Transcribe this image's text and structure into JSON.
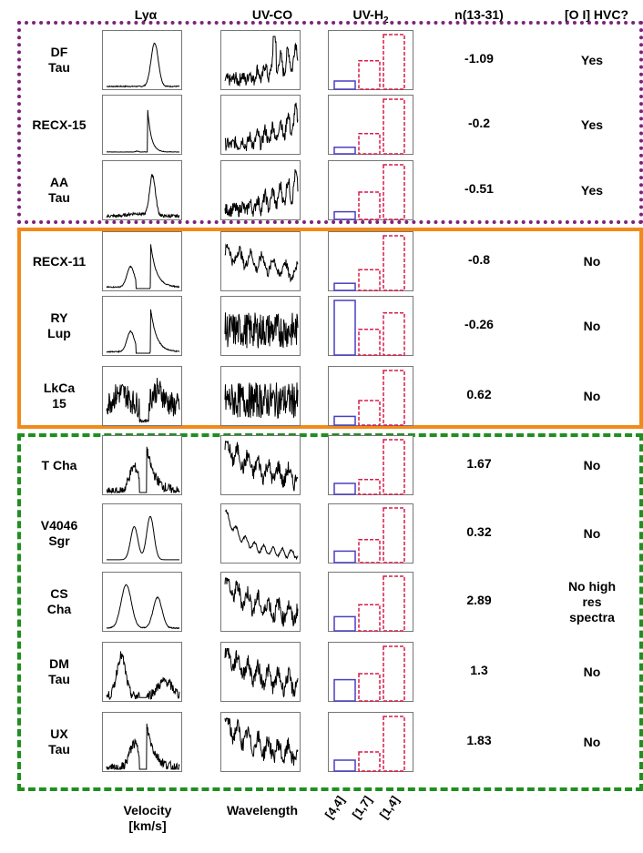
{
  "headers": {
    "lya": "Lyα",
    "uvco": "UV-CO",
    "uvh2_base": "UV-H",
    "uvh2_sub": "2",
    "n": "n(13-31)",
    "hvc": "[O I] HVC?"
  },
  "footer": {
    "velocity_line1": "Velocity",
    "velocity_line2": "[km/s]",
    "wavelength": "Wavelength",
    "bins": [
      "[4,4]",
      "[1,7]",
      "[1,4]"
    ]
  },
  "colors": {
    "group_purple": "#7b237b",
    "group_orange": "#f28a1a",
    "group_green": "#1f8f1f",
    "bar_44": "#4a3fc0",
    "bar_other": "#d81b4a"
  },
  "chart_data": {
    "type": "table",
    "columns": [
      "Lyα",
      "UV-CO",
      "UV-H2",
      "n(13-31)",
      "[O I] HVC?"
    ],
    "uvh2_bins": [
      "[4,4]",
      "[1,7]",
      "[1,4]"
    ],
    "uvh2_units": "relative height (1 = tallest bar in the row)",
    "rows": [
      {
        "name": "DF\nTau",
        "n": "-1.09",
        "hvc": "Yes",
        "group": "purple",
        "uvh2": [
          0.15,
          0.52,
          1.0
        ],
        "lya_shape": "single"
      },
      {
        "name": "RECX-15",
        "n": "-0.2",
        "hvc": "Yes",
        "group": "purple",
        "uvh2": [
          0.12,
          0.37,
          1.0
        ],
        "lya_shape": "cut-single"
      },
      {
        "name": "AA\nTau",
        "n": "-0.51",
        "hvc": "Yes",
        "group": "purple",
        "uvh2": [
          0.14,
          0.5,
          1.0
        ],
        "lya_shape": "single-noisy"
      },
      {
        "name": "RECX-11",
        "n": "-0.8",
        "hvc": "No",
        "group": "orange",
        "uvh2": [
          0.13,
          0.38,
          1.0
        ],
        "lya_shape": "double"
      },
      {
        "name": "RY\nLup",
        "n": "-0.26",
        "hvc": "No",
        "group": "orange",
        "uvh2": [
          1.0,
          0.47,
          0.77
        ],
        "lya_shape": "double"
      },
      {
        "name": "LkCa\n15",
        "n": "0.62",
        "hvc": "No",
        "group": "orange",
        "uvh2": [
          0.16,
          0.45,
          1.0
        ],
        "lya_shape": "noisy-double"
      },
      {
        "name": "T Cha",
        "n": "1.67",
        "hvc": "No",
        "group": "green",
        "uvh2": [
          0.2,
          0.27,
          1.0
        ],
        "lya_shape": "double-noisy"
      },
      {
        "name": "V4046\nSgr",
        "n": "0.32",
        "hvc": "No",
        "group": "green",
        "uvh2": [
          0.21,
          0.42,
          1.0
        ],
        "lya_shape": "double-smooth"
      },
      {
        "name": "CS\nCha",
        "n": "2.89",
        "hvc": "No high\nres\nspectra",
        "group": "green",
        "uvh2": [
          0.26,
          0.48,
          1.0
        ],
        "lya_shape": "double-wide"
      },
      {
        "name": "DM\nTau",
        "n": "1.3",
        "hvc": "No",
        "group": "green",
        "uvh2": [
          0.39,
          0.5,
          1.0
        ],
        "lya_shape": "double-asym"
      },
      {
        "name": "UX\nTau",
        "n": "1.83",
        "hvc": "No",
        "group": "green",
        "uvh2": [
          0.2,
          0.35,
          1.0
        ],
        "lya_shape": "double-noisy"
      }
    ]
  }
}
